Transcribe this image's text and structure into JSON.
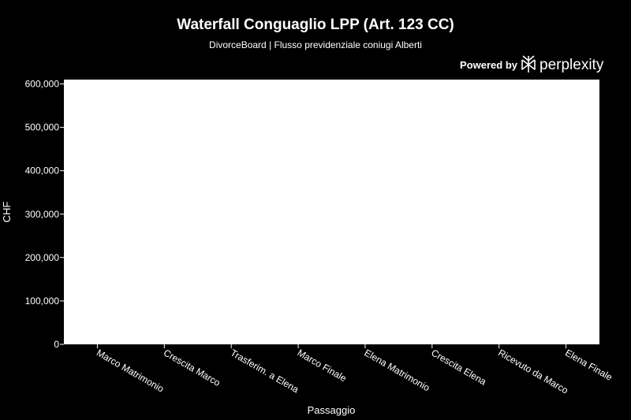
{
  "title": "Waterfall Conguaglio LPP (Art. 123 CC)",
  "subtitle": "DivorceBoard | Flusso previdenziale coniugi Alberti",
  "branding": {
    "powered_by": "Powered by",
    "brand_name": "perplexity",
    "icon": "perplexity-logo-icon"
  },
  "colors": {
    "background": "#000000",
    "plot_background": "#ffffff",
    "text": "#ffffff"
  },
  "chart_data": {
    "type": "bar",
    "subtype": "waterfall",
    "title": "Waterfall Conguaglio LPP (Art. 123 CC)",
    "subtitle": "DivorceBoard | Flusso previdenziale coniugi Alberti",
    "xlabel": "Passaggio",
    "ylabel": "CHF",
    "categories": [
      "Marco Matrimonio",
      "Crescita Marco",
      "Trasferim. a Elena",
      "Marco Finale",
      "Elena Matrimonio",
      "Crescita Elena",
      "Ricevuto da Marco",
      "Elena Finale"
    ],
    "values": [
      null,
      null,
      null,
      null,
      null,
      null,
      null,
      null
    ],
    "ylim": [
      0,
      610000
    ],
    "yticks": [
      0,
      100000,
      200000,
      300000,
      400000,
      500000,
      600000
    ],
    "ytick_labels": [
      "0",
      "100,000",
      "200,000",
      "300,000",
      "400,000",
      "500,000",
      "600,000"
    ],
    "grid": false,
    "legend": "none"
  }
}
